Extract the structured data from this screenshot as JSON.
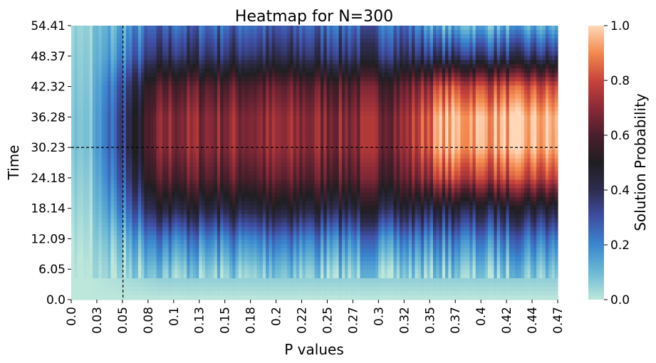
{
  "chart_data": {
    "type": "heatmap",
    "title": "Heatmap for N=300",
    "xlabel": "P values",
    "ylabel": "Time",
    "x_tick_labels": [
      "0.0",
      "0.03",
      "0.05",
      "0.08",
      "0.1",
      "0.13",
      "0.15",
      "0.18",
      "0.2",
      "0.22",
      "0.25",
      "0.27",
      "0.3",
      "0.32",
      "0.35",
      "0.37",
      "0.4",
      "0.42",
      "0.44",
      "0.47"
    ],
    "y_tick_labels": [
      "0.0",
      "6.05",
      "12.09",
      "18.14",
      "24.18",
      "30.23",
      "36.28",
      "42.32",
      "48.37",
      "54.41"
    ],
    "xlim": [
      0.0,
      0.47
    ],
    "ylim": [
      0.0,
      54.41
    ],
    "reference_lines": {
      "vertical_x": 0.05,
      "horizontal_y": 30.23,
      "style": "dashed",
      "color": "#000000"
    },
    "colorbar": {
      "label": "Solution Probability",
      "range": [
        0.0,
        1.0
      ],
      "tick_labels": [
        "0.0",
        "0.2",
        "0.4",
        "0.6",
        "0.8",
        "1.0"
      ],
      "colormap": "icefire",
      "color_stops": [
        [
          0.0,
          "#bde7db"
        ],
        [
          0.1,
          "#6cb9d4"
        ],
        [
          0.2,
          "#3a87cf"
        ],
        [
          0.3,
          "#3f4fa6"
        ],
        [
          0.4,
          "#2e2c4e"
        ],
        [
          0.5,
          "#1f1e21"
        ],
        [
          0.6,
          "#4b1e2c"
        ],
        [
          0.7,
          "#8a2a38"
        ],
        [
          0.8,
          "#c8433a"
        ],
        [
          0.9,
          "#f3894e"
        ],
        [
          1.0,
          "#ffd8b8"
        ]
      ]
    },
    "summary_profile": {
      "time": [
        0,
        6.05,
        12.09,
        18.14,
        24.18,
        30.23,
        36.28,
        42.32,
        48.37,
        54.41
      ],
      "value_at_p_0": [
        0.0,
        0.0,
        0.02,
        0.04,
        0.06,
        0.08,
        0.08,
        0.07,
        0.06,
        0.05
      ],
      "value_at_p_0_2": [
        0.0,
        0.08,
        0.22,
        0.45,
        0.62,
        0.7,
        0.7,
        0.62,
        0.38,
        0.26
      ],
      "value_at_p_0_47": [
        0.0,
        0.08,
        0.22,
        0.44,
        0.78,
        0.94,
        0.95,
        0.8,
        0.36,
        0.12
      ]
    }
  }
}
